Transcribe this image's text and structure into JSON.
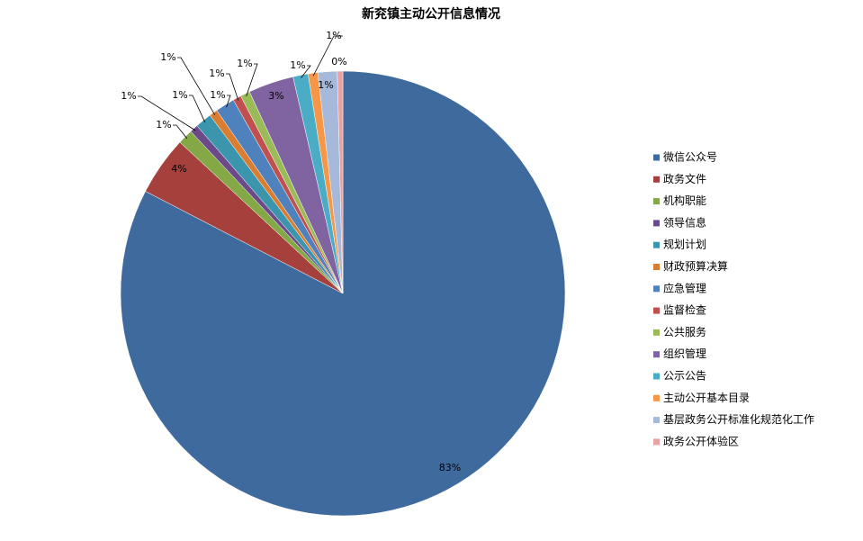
{
  "chart_data": {
    "type": "pie",
    "title": "新兖镇主动公开信息情况",
    "categories": [
      "微信公众号",
      "政务文件",
      "机构职能",
      "领导信息",
      "规划计划",
      "财政预算决算",
      "应急管理",
      "监督检查",
      "公共服务",
      "组织管理",
      "公示公告",
      "主动公开基本目录",
      "基层政务公开标准化规范化工作",
      "政务公开体验区"
    ],
    "values": [
      82.6,
      4.3,
      1.1,
      0.6,
      1.2,
      0.6,
      1.4,
      0.6,
      0.7,
      3.3,
      1.1,
      0.7,
      1.4,
      0.4
    ],
    "value_labels": [
      "83%",
      "4%",
      "1%",
      "1%",
      "1%",
      "1%",
      "1%",
      "1%",
      "1%",
      "3%",
      "1%",
      "1%",
      "1%",
      "0%"
    ],
    "colors": [
      "#3f6a9e",
      "#a5403c",
      "#84a846",
      "#6c4a8a",
      "#3b96ad",
      "#db7d31",
      "#4f81bd",
      "#c0504d",
      "#9bbb59",
      "#8064a2",
      "#4bacc6",
      "#f79646",
      "#a6b9da",
      "#e6a3a2"
    ],
    "legend": "right"
  }
}
